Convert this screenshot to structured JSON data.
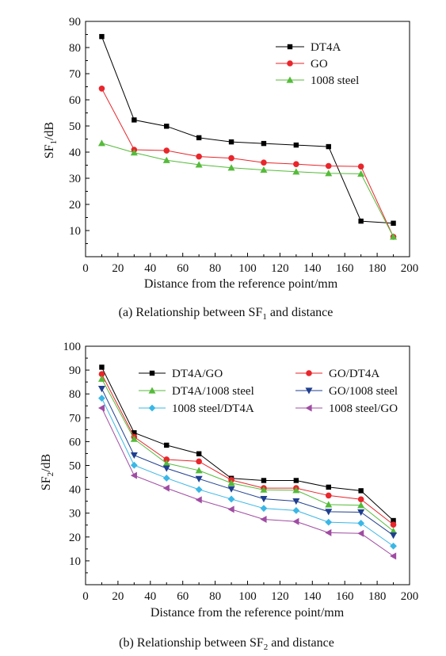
{
  "chart_data": [
    {
      "type": "line",
      "ylabel": {
        "main": "SF",
        "sub": "1",
        "tail": "/dB"
      },
      "xlabel": "Distance from the reference point/mm",
      "caption": {
        "main": "(a) Relationship between SF",
        "sub": "1",
        "tail": " and distance"
      },
      "xlim": [
        0,
        200
      ],
      "ylim": [
        0,
        90
      ],
      "xticks": [
        0,
        20,
        40,
        60,
        80,
        100,
        120,
        140,
        160,
        180,
        200
      ],
      "yticks": [
        10,
        20,
        30,
        40,
        50,
        60,
        70,
        80,
        90
      ],
      "x": [
        10,
        30,
        50,
        70,
        90,
        110,
        130,
        150,
        170,
        190
      ],
      "legend_position": "top-right",
      "series": [
        {
          "name": "DT4A",
          "color": "#000000",
          "marker": "square",
          "values": [
            84.2,
            52.3,
            49.9,
            45.5,
            43.9,
            43.3,
            42.7,
            42.1,
            13.6,
            12.8
          ]
        },
        {
          "name": "GO",
          "color": "#e8262b",
          "marker": "circle",
          "values": [
            64.3,
            40.9,
            40.6,
            38.3,
            37.7,
            36.0,
            35.4,
            34.7,
            34.5,
            7.6
          ]
        },
        {
          "name": "1008 steel",
          "color": "#55bb3a",
          "marker": "triangle-up",
          "values": [
            43.4,
            39.8,
            36.9,
            35.2,
            34.0,
            33.2,
            32.5,
            31.9,
            31.7,
            7.6
          ]
        }
      ]
    },
    {
      "type": "line",
      "ylabel": {
        "main": "SF",
        "sub": "2",
        "tail": "/dB"
      },
      "xlabel": "Distance from the reference point/mm",
      "caption": {
        "main": "(b) Relationship between SF",
        "sub": "2",
        "tail": " and distance"
      },
      "xlim": [
        0,
        200
      ],
      "ylim": [
        0,
        100
      ],
      "xticks": [
        0,
        20,
        40,
        60,
        80,
        100,
        120,
        140,
        160,
        180,
        200
      ],
      "yticks": [
        10,
        20,
        30,
        40,
        50,
        60,
        70,
        80,
        90,
        100
      ],
      "x": [
        10,
        30,
        50,
        70,
        90,
        110,
        130,
        150,
        170,
        190
      ],
      "legend_position": "top",
      "series": [
        {
          "name": "DT4A/GO",
          "color": "#000000",
          "marker": "square",
          "values": [
            91.2,
            63.7,
            58.5,
            54.9,
            44.6,
            43.7,
            43.7,
            40.9,
            39.4,
            26.9
          ]
        },
        {
          "name": "GO/DT4A",
          "color": "#e8262b",
          "marker": "circle",
          "values": [
            88.3,
            62.0,
            52.5,
            51.7,
            43.9,
            40.5,
            40.5,
            37.4,
            35.8,
            25.2
          ]
        },
        {
          "name": "DT4A/1008 steel",
          "color": "#55bb3a",
          "marker": "triangle-up",
          "values": [
            86.3,
            61.1,
            50.9,
            47.9,
            42.6,
            39.8,
            39.6,
            33.6,
            33.3,
            22.5
          ]
        },
        {
          "name": "GO/1008 steel",
          "color": "#1f3f8f",
          "marker": "triangle-down",
          "values": [
            82.2,
            54.3,
            48.8,
            44.4,
            40.1,
            36.0,
            35.0,
            30.6,
            30.4,
            20.7
          ]
        },
        {
          "name": "1008 steel/DT4A",
          "color": "#3ab7e6",
          "marker": "diamond",
          "values": [
            78.2,
            50.1,
            44.7,
            39.9,
            35.9,
            32.0,
            31.1,
            26.2,
            25.8,
            16.2
          ]
        },
        {
          "name": "1008 steel/GO",
          "color": "#a04ca3",
          "marker": "triangle-left",
          "values": [
            74.1,
            45.8,
            40.5,
            35.6,
            31.6,
            27.4,
            26.5,
            21.8,
            21.5,
            12.0
          ]
        }
      ]
    }
  ]
}
